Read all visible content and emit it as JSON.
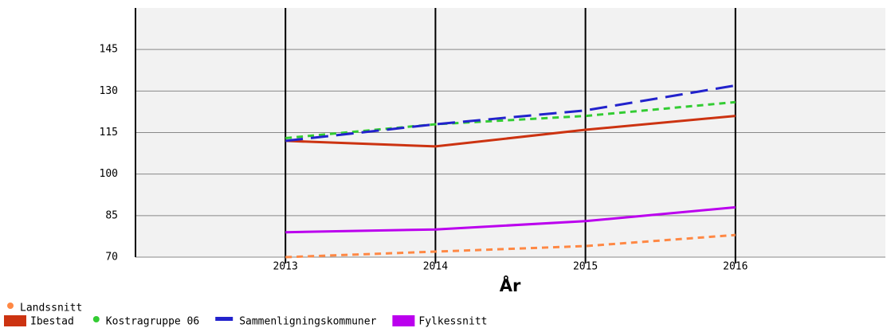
{
  "chart_data": {
    "type": "line",
    "x_label": "År",
    "x": [
      2013,
      2014,
      2015,
      2016
    ],
    "series": [
      {
        "name": "Landssnitt",
        "color": "#ff8844",
        "line_style": "dashed",
        "marker": "circle",
        "values": [
          70,
          72,
          74,
          78
        ]
      },
      {
        "name": "Ibestad",
        "color": "#cc3311",
        "line_style": "solid",
        "marker": "square",
        "values": [
          112,
          110,
          116,
          121
        ]
      },
      {
        "name": "Kostragruppe 06",
        "color": "#33cc33",
        "line_style": "dashed",
        "marker": "circle",
        "values": [
          113,
          118,
          121,
          126
        ]
      },
      {
        "name": "Sammenligningskommuner",
        "color": "#2222cc",
        "line_style": "long-dashed",
        "marker": "bar",
        "values": [
          112,
          118,
          123,
          132
        ]
      },
      {
        "name": "Fylkessnitt",
        "color": "#bb00ee",
        "line_style": "solid",
        "marker": "square",
        "values": [
          79,
          80,
          83,
          88
        ]
      }
    ],
    "xlim": [
      2012,
      2017
    ],
    "xticks": [
      2013,
      2014,
      2015,
      2016
    ],
    "ylim": [
      70,
      160
    ],
    "yticks": [
      70,
      85,
      100,
      115,
      130,
      145
    ],
    "grid": true
  }
}
